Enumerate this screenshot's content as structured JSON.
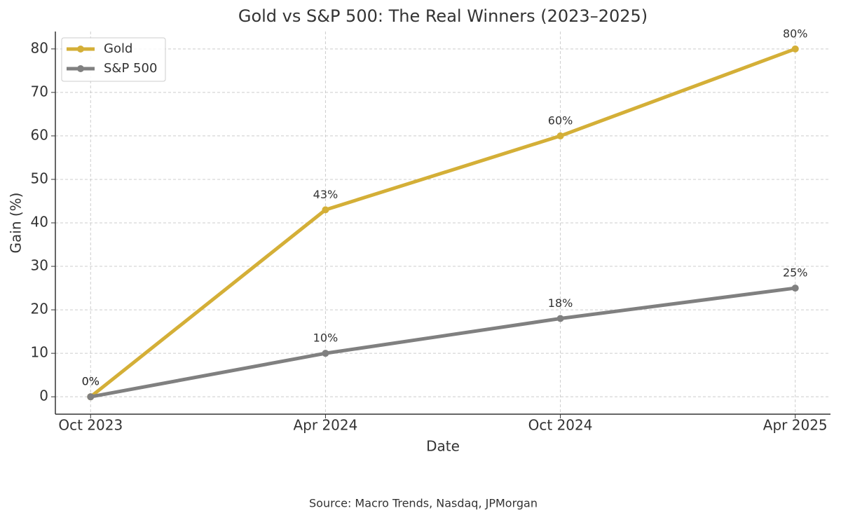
{
  "chart_data": {
    "type": "line",
    "title": "Gold vs S&P 500: The Real Winners (2023–2025)",
    "x_label": "Date",
    "y_label": "Gain (%)",
    "source": "Source: Macro Trends, Nasdaq, JPMorgan",
    "categories": [
      "Oct 2023",
      "Apr 2024",
      "Oct 2024",
      "Apr 2025"
    ],
    "series": [
      {
        "name": "Gold",
        "color": "#d4af37",
        "values": [
          0,
          43,
          60,
          80
        ],
        "value_labels": [
          "0%",
          "43%",
          "60%",
          "80%"
        ]
      },
      {
        "name": "S&P 500",
        "color": "#808080",
        "values": [
          0,
          10,
          18,
          25
        ],
        "value_labels": [
          "0%",
          "10%",
          "18%",
          "25%"
        ]
      }
    ],
    "ylim": [
      -4,
      84
    ],
    "yticks": [
      0,
      10,
      20,
      30,
      40,
      50,
      60,
      70,
      80
    ],
    "grid": true,
    "legend": "upper left"
  }
}
